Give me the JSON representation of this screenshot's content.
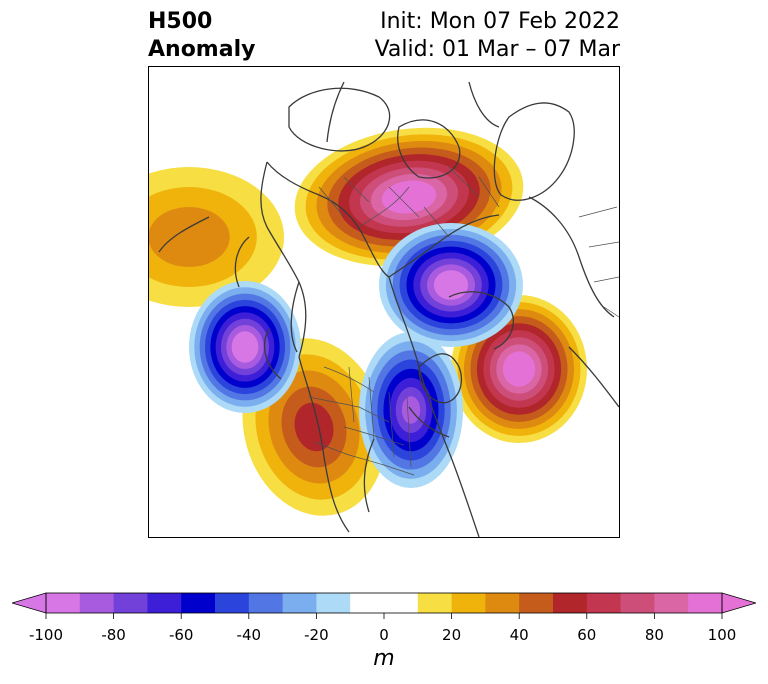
{
  "title": {
    "left_line1": "H500",
    "left_line2": "Anomaly",
    "right_line1": "Init: Mon 07 Feb 2022",
    "right_line2": "Valid: 01 Mar – 07 Mar"
  },
  "colorbar": {
    "unit": "m",
    "ticks": [
      "-100",
      "-80",
      "-60",
      "-40",
      "-20",
      "0",
      "20",
      "40",
      "60",
      "80",
      "100"
    ],
    "bins": [
      {
        "range": [
          -100,
          -90
        ],
        "color": "#d777e6"
      },
      {
        "range": [
          -90,
          -80
        ],
        "color": "#a95be0"
      },
      {
        "range": [
          -80,
          -70
        ],
        "color": "#7241d9"
      },
      {
        "range": [
          -70,
          -60
        ],
        "color": "#3d1fd8"
      },
      {
        "range": [
          -60,
          -50
        ],
        "color": "#0000cc"
      },
      {
        "range": [
          -50,
          -40
        ],
        "color": "#2b45dc"
      },
      {
        "range": [
          -40,
          -30
        ],
        "color": "#5276e3"
      },
      {
        "range": [
          -30,
          -20
        ],
        "color": "#7aaeee"
      },
      {
        "range": [
          -20,
          -10
        ],
        "color": "#acdaf7"
      },
      {
        "range": [
          -10,
          10
        ],
        "color": "#ffffff"
      },
      {
        "range": [
          10,
          20
        ],
        "color": "#f7de43"
      },
      {
        "range": [
          20,
          30
        ],
        "color": "#f0b30c"
      },
      {
        "range": [
          30,
          40
        ],
        "color": "#de8a10"
      },
      {
        "range": [
          40,
          50
        ],
        "color": "#c65c1b"
      },
      {
        "range": [
          50,
          60
        ],
        "color": "#b0262a"
      },
      {
        "range": [
          60,
          70
        ],
        "color": "#c2374f"
      },
      {
        "range": [
          70,
          80
        ],
        "color": "#cd4f79"
      },
      {
        "range": [
          80,
          90
        ],
        "color": "#da66a6"
      },
      {
        "range": [
          90,
          100
        ],
        "color": "#e472d6"
      }
    ],
    "extend_low_color": "#d777e6",
    "extend_high_color": "#e472d6"
  },
  "anomalies": [
    {
      "name": "arctic-ridge",
      "sign": "positive",
      "peak_m": 100
    },
    {
      "name": "siberian-trough",
      "sign": "negative",
      "peak_m": -100
    },
    {
      "name": "gulf-of-alaska-trough",
      "sign": "negative",
      "peak_m": -100
    },
    {
      "name": "eastern-north-america-trough",
      "sign": "negative",
      "peak_m": -80
    },
    {
      "name": "north-atlantic-ridge",
      "sign": "positive",
      "peak_m": 100
    },
    {
      "name": "north-pacific-ridge",
      "sign": "positive",
      "peak_m": 30
    },
    {
      "name": "western-us-ridge",
      "sign": "positive",
      "peak_m": 50
    }
  ]
}
